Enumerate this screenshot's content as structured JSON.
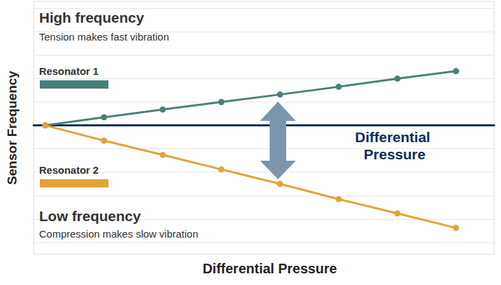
{
  "chart_data": {
    "type": "line",
    "x_label": "Differential Pressure",
    "y_label": "Sensor Frequency",
    "x": [
      0,
      1,
      2,
      3,
      4,
      5,
      6,
      7
    ],
    "series": [
      {
        "name": "Resonator 1",
        "color": "#4a807a",
        "marker": "circle",
        "line_style": "solid",
        "values": [
          0,
          0.35,
          0.68,
          1.0,
          1.32,
          1.65,
          2.0,
          2.32
        ]
      },
      {
        "name": "Resonator 2",
        "color": "#e3a23a",
        "marker": "circle",
        "line_style": "solid",
        "values": [
          0,
          -0.65,
          -1.26,
          -1.88,
          -2.5,
          -3.15,
          -3.76,
          -4.38
        ]
      }
    ],
    "xlim": [
      -0.2,
      7.65
    ],
    "ylim": [
      -5.5,
      5.3
    ],
    "yticks": [
      -5,
      -4,
      -3,
      -2,
      -1,
      0,
      1,
      2,
      3,
      4,
      5
    ],
    "grid": true,
    "tick_labels": false,
    "annotations": [
      {
        "text": "High frequency"
      },
      {
        "text": "Tension makes fast vibration"
      },
      {
        "text": "Low frequency"
      },
      {
        "text": "Compression makes slow vibration"
      },
      {
        "text": "Differential Pressure"
      }
    ]
  }
}
